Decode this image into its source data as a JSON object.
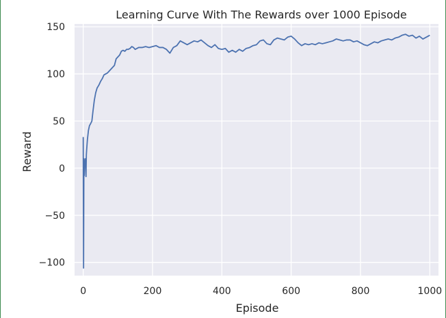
{
  "chart_data": {
    "type": "line",
    "title": "Learning Curve With The Rewards over  1000 Episode",
    "xlabel": "Episode",
    "ylabel": "Reward",
    "xlim": [
      -25,
      1025
    ],
    "ylim": [
      -114,
      153
    ],
    "xticks": [
      0,
      200,
      400,
      600,
      800,
      1000
    ],
    "yticks": [
      -100,
      -50,
      0,
      50,
      100,
      150
    ],
    "xtick_labels": [
      "0",
      "200",
      "400",
      "600",
      "800",
      "1000"
    ],
    "ytick_labels": [
      "−100",
      "−50",
      "0",
      "50",
      "100",
      "150"
    ],
    "grid": true,
    "background": "#eaeaf2",
    "grid_color": "#ffffff",
    "series": [
      {
        "color": "#4c72b0",
        "x": [
          0,
          1,
          2,
          3,
          4,
          5,
          6,
          7,
          8,
          9,
          10,
          12,
          15,
          18,
          21,
          25,
          28,
          32,
          36,
          40,
          45,
          50,
          55,
          60,
          65,
          70,
          75,
          80,
          85,
          90,
          95,
          100,
          105,
          110,
          115,
          120,
          125,
          130,
          135,
          140,
          145,
          150,
          160,
          170,
          180,
          190,
          200,
          210,
          220,
          230,
          240,
          250,
          260,
          270,
          280,
          290,
          300,
          310,
          320,
          330,
          340,
          350,
          360,
          370,
          380,
          390,
          400,
          410,
          420,
          430,
          440,
          450,
          460,
          470,
          480,
          490,
          500,
          510,
          520,
          530,
          540,
          550,
          560,
          570,
          580,
          590,
          600,
          610,
          620,
          630,
          640,
          650,
          660,
          670,
          680,
          690,
          700,
          710,
          720,
          730,
          740,
          750,
          760,
          770,
          780,
          790,
          800,
          810,
          820,
          830,
          840,
          850,
          860,
          870,
          880,
          890,
          900,
          910,
          920,
          930,
          940,
          950,
          960,
          970,
          980,
          990,
          1000
        ],
        "y": [
          33,
          -106,
          10,
          -8,
          5,
          3,
          10,
          6,
          -9,
          14,
          20,
          30,
          40,
          45,
          47,
          50,
          60,
          72,
          80,
          85,
          88,
          92,
          95,
          99,
          100,
          101,
          103,
          105,
          107,
          109,
          116,
          118,
          120,
          124,
          125,
          124,
          126,
          126,
          127,
          129,
          128,
          126,
          128,
          128,
          129,
          128,
          129,
          130,
          128,
          128,
          126,
          122,
          128,
          130,
          135,
          133,
          131,
          133,
          135,
          134,
          136,
          133,
          130,
          128,
          131,
          127,
          126,
          127,
          123,
          125,
          123,
          126,
          124,
          127,
          128,
          130,
          131,
          135,
          136,
          132,
          131,
          136,
          138,
          137,
          136,
          139,
          140,
          137,
          133,
          130,
          132,
          131,
          132,
          131,
          133,
          132,
          133,
          134,
          135,
          137,
          136,
          135,
          136,
          136,
          134,
          135,
          133,
          131,
          130,
          132,
          134,
          133,
          135,
          136,
          137,
          136,
          138,
          139,
          141,
          142,
          140,
          141,
          138,
          140,
          137,
          139,
          141
        ]
      }
    ]
  }
}
